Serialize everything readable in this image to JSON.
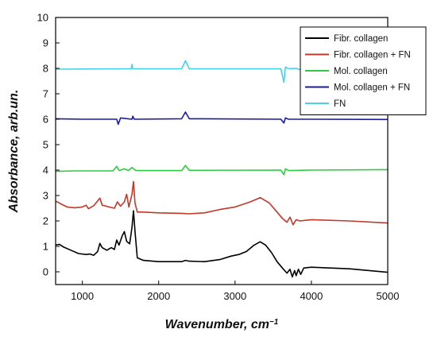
{
  "chart_data": {
    "type": "line",
    "xlabel": "Wavenumber, cm",
    "xlabel_sup": "−1",
    "ylabel": "Absorbance, arb.un.",
    "xlim": [
      650,
      5000
    ],
    "ylim": [
      -0.5,
      10
    ],
    "xticks": [
      1000,
      2000,
      3000,
      4000,
      5000
    ],
    "yticks": [
      0,
      1,
      2,
      3,
      4,
      5,
      6,
      7,
      8,
      9,
      10
    ],
    "grid": false,
    "legend_position": "top-right",
    "series": [
      {
        "name": "Fibr. collagen",
        "color": "#000000",
        "points": [
          [
            650,
            1.05
          ],
          [
            700,
            1.08
          ],
          [
            750,
            0.98
          ],
          [
            850,
            0.85
          ],
          [
            950,
            0.72
          ],
          [
            1050,
            0.68
          ],
          [
            1100,
            0.7
          ],
          [
            1150,
            0.65
          ],
          [
            1200,
            0.8
          ],
          [
            1230,
            1.12
          ],
          [
            1260,
            0.95
          ],
          [
            1320,
            0.85
          ],
          [
            1380,
            0.95
          ],
          [
            1420,
            0.88
          ],
          [
            1450,
            1.25
          ],
          [
            1480,
            1.05
          ],
          [
            1520,
            1.4
          ],
          [
            1550,
            1.58
          ],
          [
            1580,
            1.2
          ],
          [
            1620,
            1.1
          ],
          [
            1650,
            1.75
          ],
          [
            1670,
            2.4
          ],
          [
            1690,
            1.6
          ],
          [
            1720,
            0.55
          ],
          [
            1800,
            0.45
          ],
          [
            2000,
            0.4
          ],
          [
            2300,
            0.4
          ],
          [
            2350,
            0.45
          ],
          [
            2400,
            0.42
          ],
          [
            2600,
            0.4
          ],
          [
            2800,
            0.48
          ],
          [
            2950,
            0.62
          ],
          [
            3050,
            0.68
          ],
          [
            3150,
            0.8
          ],
          [
            3250,
            1.05
          ],
          [
            3330,
            1.18
          ],
          [
            3400,
            1.05
          ],
          [
            3480,
            0.75
          ],
          [
            3550,
            0.4
          ],
          [
            3620,
            0.15
          ],
          [
            3680,
            -0.05
          ],
          [
            3720,
            0.1
          ],
          [
            3750,
            -0.2
          ],
          [
            3780,
            0.05
          ],
          [
            3800,
            -0.15
          ],
          [
            3830,
            0.1
          ],
          [
            3860,
            -0.1
          ],
          [
            3900,
            0.15
          ],
          [
            4000,
            0.18
          ],
          [
            4500,
            0.12
          ],
          [
            5000,
            -0.02
          ]
        ]
      },
      {
        "name": "Fibr. collagen + FN",
        "color": "#c0392b",
        "points": [
          [
            650,
            2.78
          ],
          [
            700,
            2.7
          ],
          [
            800,
            2.55
          ],
          [
            900,
            2.52
          ],
          [
            1000,
            2.55
          ],
          [
            1050,
            2.62
          ],
          [
            1080,
            2.48
          ],
          [
            1150,
            2.6
          ],
          [
            1230,
            2.9
          ],
          [
            1260,
            2.62
          ],
          [
            1350,
            2.55
          ],
          [
            1420,
            2.5
          ],
          [
            1460,
            2.75
          ],
          [
            1500,
            2.58
          ],
          [
            1550,
            2.75
          ],
          [
            1580,
            3.05
          ],
          [
            1610,
            2.55
          ],
          [
            1650,
            3.05
          ],
          [
            1670,
            3.55
          ],
          [
            1690,
            2.7
          ],
          [
            1720,
            2.35
          ],
          [
            1800,
            2.35
          ],
          [
            2000,
            2.32
          ],
          [
            2300,
            2.3
          ],
          [
            2400,
            2.28
          ],
          [
            2600,
            2.32
          ],
          [
            2800,
            2.45
          ],
          [
            3000,
            2.55
          ],
          [
            3200,
            2.75
          ],
          [
            3330,
            2.92
          ],
          [
            3450,
            2.7
          ],
          [
            3550,
            2.35
          ],
          [
            3620,
            2.1
          ],
          [
            3680,
            1.95
          ],
          [
            3720,
            2.15
          ],
          [
            3760,
            1.85
          ],
          [
            3800,
            2.05
          ],
          [
            3850,
            2.0
          ],
          [
            4000,
            2.05
          ],
          [
            4500,
            2.0
          ],
          [
            5000,
            1.92
          ]
        ]
      },
      {
        "name": "Mol. collagen",
        "color": "#2ecc40",
        "points": [
          [
            650,
            3.95
          ],
          [
            900,
            3.97
          ],
          [
            1400,
            3.97
          ],
          [
            1450,
            4.15
          ],
          [
            1480,
            3.98
          ],
          [
            1550,
            4.05
          ],
          [
            1600,
            3.98
          ],
          [
            1650,
            4.1
          ],
          [
            1700,
            3.98
          ],
          [
            2300,
            3.98
          ],
          [
            2350,
            4.18
          ],
          [
            2400,
            3.99
          ],
          [
            3600,
            4.0
          ],
          [
            3640,
            3.82
          ],
          [
            3660,
            4.05
          ],
          [
            3700,
            3.98
          ],
          [
            4000,
            4.0
          ],
          [
            5000,
            4.02
          ]
        ]
      },
      {
        "name": "Mol. collagen + FN",
        "color": "#1a1aa6",
        "points": [
          [
            650,
            6.02
          ],
          [
            1000,
            6.0
          ],
          [
            1450,
            6.0
          ],
          [
            1470,
            5.8
          ],
          [
            1500,
            6.05
          ],
          [
            1650,
            6.0
          ],
          [
            1660,
            6.12
          ],
          [
            1680,
            6.0
          ],
          [
            2300,
            6.02
          ],
          [
            2350,
            6.28
          ],
          [
            2400,
            6.02
          ],
          [
            3600,
            6.0
          ],
          [
            3640,
            5.85
          ],
          [
            3660,
            6.05
          ],
          [
            3700,
            6.0
          ],
          [
            4000,
            6.0
          ],
          [
            5000,
            5.99
          ]
        ]
      },
      {
        "name": "FN",
        "color": "#48d1e8",
        "points": [
          [
            650,
            7.97
          ],
          [
            1500,
            7.98
          ],
          [
            1640,
            7.98
          ],
          [
            1650,
            8.15
          ],
          [
            1660,
            7.98
          ],
          [
            2300,
            7.98
          ],
          [
            2350,
            8.3
          ],
          [
            2400,
            7.98
          ],
          [
            3600,
            7.98
          ],
          [
            3640,
            7.45
          ],
          [
            3660,
            8.05
          ],
          [
            3700,
            7.98
          ],
          [
            3800,
            8.0
          ],
          [
            3850,
            7.95
          ],
          [
            5000,
            7.98
          ]
        ]
      }
    ]
  }
}
